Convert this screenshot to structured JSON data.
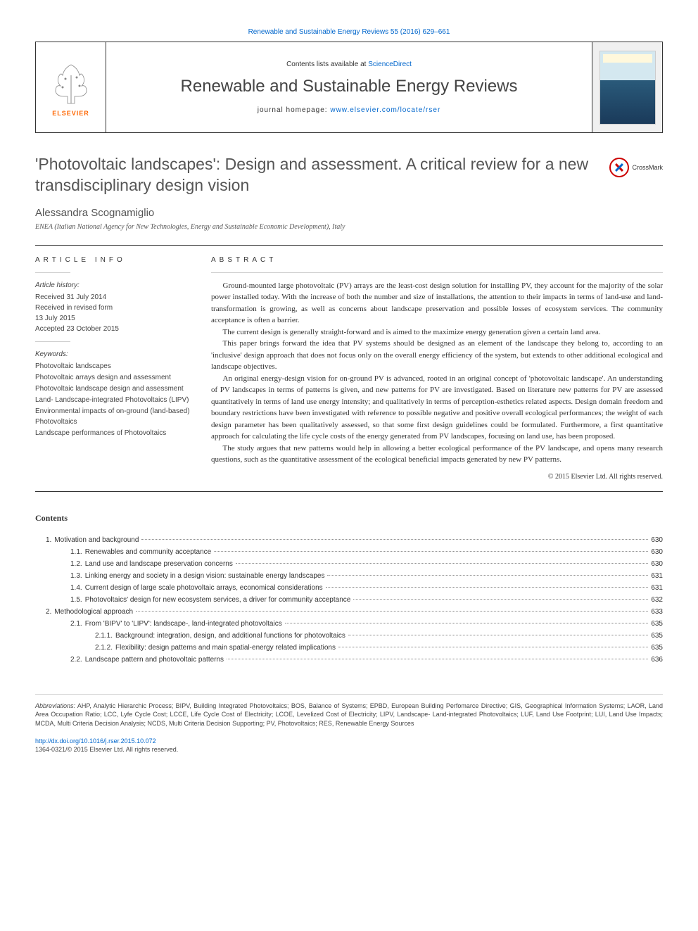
{
  "top_citation": "Renewable and Sustainable Energy Reviews 55 (2016) 629–661",
  "header": {
    "contents_prefix": "Contents lists available at ",
    "contents_link": "ScienceDirect",
    "journal_title": "Renewable and Sustainable Energy Reviews",
    "homepage_prefix": "journal homepage: ",
    "homepage_link": "www.elsevier.com/locate/rser",
    "elsevier_label": "ELSEVIER"
  },
  "crossmark_label": "CrossMark",
  "article": {
    "title": "'Photovoltaic landscapes': Design and assessment. A critical review for a new transdisciplinary design vision",
    "author": "Alessandra Scognamiglio",
    "affiliation": "ENEA (Italian National Agency for New Technologies, Energy and Sustainable Economic Development), Italy"
  },
  "info_head": "ARTICLE INFO",
  "abstract_head": "ABSTRACT",
  "history": {
    "label": "Article history:",
    "received": "Received 31 July 2014",
    "revised": "Received in revised form",
    "revised_date": "13 July 2015",
    "accepted": "Accepted 23 October 2015"
  },
  "keywords": {
    "label": "Keywords:",
    "items": [
      "Photovoltaic landscapes",
      "Photovoltaic arrays design and assessment",
      "Photovoltaic landscape design and assessment",
      "Land- Landscape-integrated Photovoltaics (LIPV)",
      "Environmental impacts of on-ground (land-based) Photovoltaics",
      "Landscape performances of Photovoltaics"
    ]
  },
  "abstract": {
    "p1": "Ground-mounted large photovoltaic (PV) arrays are the least-cost design solution for installing PV, they account for the majority of the solar power installed today. With the increase of both the number and size of installations, the attention to their impacts in terms of land-use and land-transformation is growing, as well as concerns about landscape preservation and possible losses of ecosystem services. The community acceptance is often a barrier.",
    "p2": "The current design is generally straight-forward and is aimed to the maximize energy generation given a certain land area.",
    "p3": "This paper brings forward the idea that PV systems should be designed as an element of the landscape they belong to, according to an 'inclusive' design approach that does not focus only on the overall energy efficiency of the system, but extends to other additional ecological and landscape objectives.",
    "p4": "An original energy-design vision for on-ground PV is advanced, rooted in an original concept of 'photovoltaic landscape'. An understanding of PV landscapes in terms of patterns is given, and new patterns for PV are investigated. Based on literature new patterns for PV are assessed quantitatively in terms of land use energy intensity; and qualitatively in terms of perception-esthetics related aspects. Design domain freedom and boundary restrictions have been investigated with reference to possible negative and positive overall ecological performances; the weight of each design parameter has been qualitatively assessed, so that some first design guidelines could be formulated. Furthermore, a first quantitative approach for calculating the life cycle costs of the energy generated from PV landscapes, focusing on land use, has been proposed.",
    "p5": "The study argues that new patterns would help in allowing a better ecological performance of the PV landscape, and opens many research questions, such as the quantitative assessment of the ecological beneficial impacts generated by new PV patterns.",
    "copyright": "© 2015 Elsevier Ltd. All rights reserved."
  },
  "contents_label": "Contents",
  "toc": [
    {
      "level": 1,
      "num": "1.",
      "title": "Motivation and background",
      "page": "630"
    },
    {
      "level": 2,
      "num": "1.1.",
      "title": "Renewables and community acceptance",
      "page": "630"
    },
    {
      "level": 2,
      "num": "1.2.",
      "title": "Land use and landscape preservation concerns",
      "page": "630"
    },
    {
      "level": 2,
      "num": "1.3.",
      "title": "Linking energy and society in a design vision: sustainable energy landscapes",
      "page": "631"
    },
    {
      "level": 2,
      "num": "1.4.",
      "title": "Current design of large scale photovoltaic arrays, economical considerations",
      "page": "631"
    },
    {
      "level": 2,
      "num": "1.5.",
      "title": "Photovoltaics' design for new ecosystem services, a driver for community acceptance",
      "page": "632"
    },
    {
      "level": 1,
      "num": "2.",
      "title": "Methodological approach",
      "page": "633"
    },
    {
      "level": 2,
      "num": "2.1.",
      "title": "From 'BIPV' to 'LIPV': landscape-, land-integrated photovoltaics",
      "page": "635"
    },
    {
      "level": 3,
      "num": "2.1.1.",
      "title": "Background: integration, design, and additional functions for photovoltaics",
      "page": "635"
    },
    {
      "level": 3,
      "num": "2.1.2.",
      "title": "Flexibility: design patterns and main spatial-energy related implications",
      "page": "635"
    },
    {
      "level": 2,
      "num": "2.2.",
      "title": "Landscape pattern and photovoltaic patterns",
      "page": "636"
    }
  ],
  "footer": {
    "abbrev_label": "Abbreviations:",
    "abbrev_text": " AHP, Analytic Hierarchic Process; BIPV, Building Integrated Photovoltaics; BOS, Balance of Systems; EPBD, European Building Perfomarce Directive; GIS, Geographical Information Systems; LAOR, Land Area Occupation Ratio; LCC, Lyfe Cycle Cost; LCCE, Life Cycle Cost of Electricity; LCOE, Levelized Cost of Electricity; LIPV, Landscape- Land-integrated Photovoltaics; LUF, Land Use Footprint; LUI, Land Use Impacts; MCDA, Multi Criteria Decision Analysis; NCDS, Multi Criteria Decision Supporting; PV, Photovoltaics; RES, Renewable Energy Sources",
    "doi": "http://dx.doi.org/10.1016/j.rser.2015.10.072",
    "issn_line": "1364-0321/© 2015 Elsevier Ltd. All rights reserved."
  }
}
